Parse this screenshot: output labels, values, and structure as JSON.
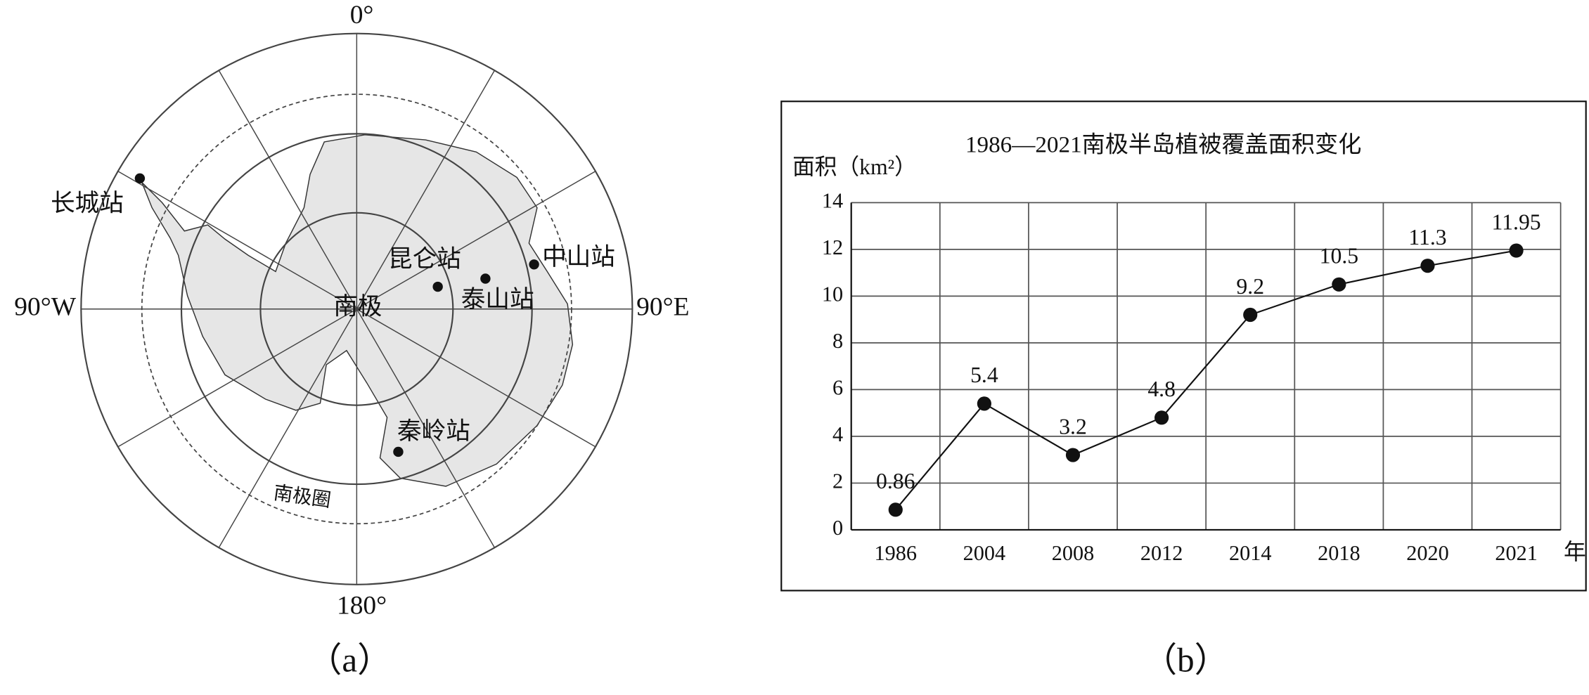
{
  "chart_data": {
    "type": "line",
    "title": "1986—2021南极半岛植被覆盖面积变化",
    "ylabel": "面积（km²）",
    "xlabel": "年",
    "categories": [
      "1986",
      "2004",
      "2008",
      "2012",
      "2014",
      "2018",
      "2020",
      "2021"
    ],
    "values": [
      0.86,
      5.4,
      3.2,
      4.8,
      9.2,
      10.5,
      11.3,
      11.95
    ],
    "color": "#111111",
    "ylim": [
      0,
      14
    ],
    "yticks": [
      0,
      2,
      4,
      6,
      8,
      10,
      12,
      14
    ],
    "grid": true
  },
  "map": {
    "meridians": [
      "0°",
      "90°E",
      "180°",
      "90°W"
    ],
    "pole": "南极",
    "circle_label": "南极圈",
    "stations": [
      "长城站",
      "昆仑站",
      "泰山站",
      "中山站",
      "秦岭站"
    ]
  },
  "panel_labels": [
    "（a）",
    "（b）"
  ]
}
